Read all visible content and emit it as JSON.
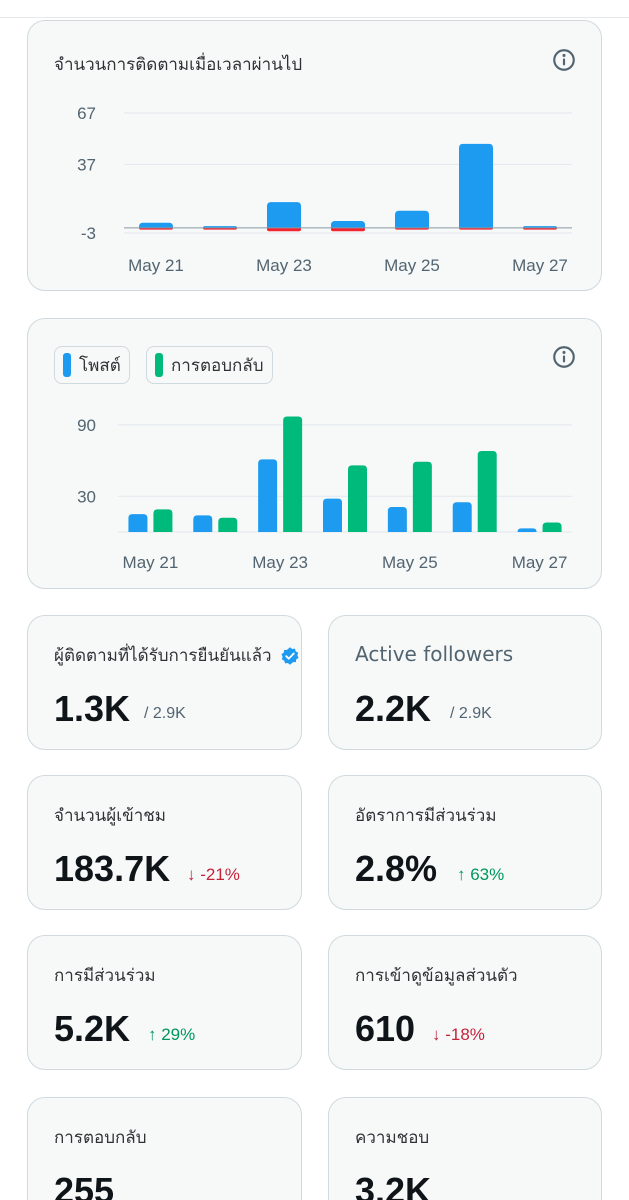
{
  "followers_chart": {
    "title": "จำนวนการติดตามเมื่อเวลาผ่านไป",
    "info_icon": "info-circle-icon",
    "chart_data": {
      "type": "bar",
      "categories": [
        "May 21",
        "May 22",
        "May 23",
        "May 24",
        "May 25",
        "May 26",
        "May 27"
      ],
      "x_tick_labels": [
        "May 21",
        "May 23",
        "May 25",
        "May 27"
      ],
      "y_tick_labels": [
        "67",
        "37",
        "-3"
      ],
      "y_ticks": [
        67,
        37,
        -3
      ],
      "ylim": [
        -3,
        67
      ],
      "series": [
        {
          "color": "#1d9bf0",
          "values": [
            3,
            1,
            15,
            4,
            10,
            49,
            1
          ]
        },
        {
          "color": "#f4212e",
          "values": [
            -1,
            -1,
            -2,
            -2,
            -1,
            -1,
            -1
          ]
        }
      ]
    }
  },
  "posts_replies_chart": {
    "legend": [
      {
        "label": "โพสต์",
        "color": "#1d9bf0"
      },
      {
        "label": "การตอบกลับ",
        "color": "#00ba7c"
      }
    ],
    "info_icon": "info-circle-icon",
    "chart_data": {
      "type": "bar",
      "categories": [
        "May 21",
        "May 22",
        "May 23",
        "May 24",
        "May 25",
        "May 26",
        "May 27"
      ],
      "x_tick_labels": [
        "May 21",
        "May 23",
        "May 25",
        "May 27"
      ],
      "y_tick_labels": [
        "90",
        "30"
      ],
      "y_ticks": [
        90,
        30
      ],
      "ylim": [
        0,
        105
      ],
      "series": [
        {
          "name": "โพสต์",
          "color": "#1d9bf0",
          "values": [
            15,
            14,
            61,
            28,
            21,
            25,
            3
          ]
        },
        {
          "name": "การตอบกลับ",
          "color": "#00ba7c",
          "values": [
            19,
            12,
            97,
            56,
            59,
            68,
            8
          ]
        }
      ]
    }
  },
  "stats": {
    "verified_followers": {
      "title": "ผู้ติดตามที่ได้รับการยืนยันแล้ว",
      "value": "1.3K",
      "sub": "/ 2.9K",
      "icon": "verified-badge-icon"
    },
    "active_followers": {
      "title": "Active followers",
      "value": "2.2K",
      "sub": "/ 2.9K"
    },
    "impressions": {
      "title": "จำนวนผู้เข้าชม",
      "value": "183.7K",
      "change": "↓ -21%",
      "direction": "down"
    },
    "engagement_rate": {
      "title": "อัตราการมีส่วนร่วม",
      "value": "2.8%",
      "change": "↑ 63%",
      "direction": "up"
    },
    "engagements": {
      "title": "การมีส่วนร่วม",
      "value": "5.2K",
      "change": "↑ 29%",
      "direction": "up"
    },
    "profile_visits": {
      "title": "การเข้าดูข้อมูลส่วนตัว",
      "value": "610",
      "change": "↓ -18%",
      "direction": "down"
    },
    "replies": {
      "title": "การตอบกลับ",
      "value": "255"
    },
    "likes": {
      "title": "ความชอบ",
      "value": "3.2K"
    }
  },
  "colors": {
    "positive": "#00965e",
    "negative": "#c3233b",
    "accent": "#1d9bf0"
  }
}
